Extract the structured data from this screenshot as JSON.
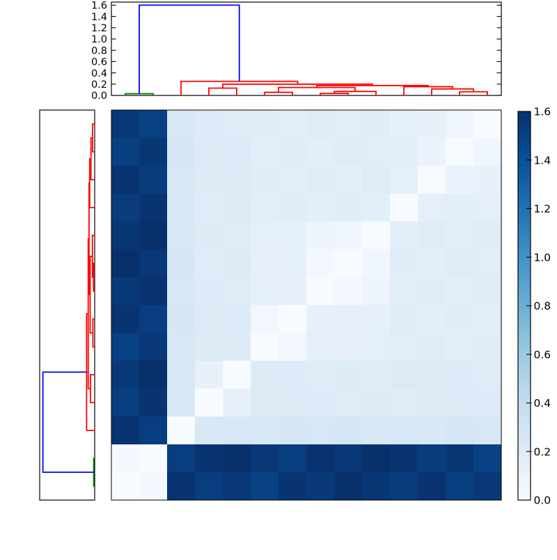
{
  "figure": {
    "background": "#ffffff",
    "description": "Hierarchically clustered distance-matrix heatmap with top and left dendrograms and a vertical colorbar"
  },
  "chart_data": {
    "type": "heatmap",
    "colormap": "Blues",
    "vmin": 0.0,
    "vmax": 1.6,
    "grid": false,
    "legend_position": "colorbar-right",
    "column_leaf_order": [
      1,
      2,
      3,
      4,
      5,
      6,
      7,
      8,
      9,
      10,
      11,
      12,
      13,
      14
    ],
    "row_leaf_order": [
      14,
      13,
      12,
      11,
      10,
      9,
      8,
      7,
      6,
      5,
      4,
      3,
      2,
      1
    ],
    "matrix": [
      [
        1.55,
        1.5,
        0.25,
        0.212,
        0.19,
        0.181,
        0.167,
        0.189,
        0.175,
        0.187,
        0.145,
        0.121,
        0.057,
        0.0
      ],
      [
        1.51,
        1.56,
        0.264,
        0.2,
        0.212,
        0.165,
        0.181,
        0.167,
        0.189,
        0.175,
        0.167,
        0.105,
        0.0,
        0.057
      ],
      [
        1.58,
        1.53,
        0.242,
        0.214,
        0.2,
        0.187,
        0.165,
        0.181,
        0.167,
        0.189,
        0.155,
        0.0,
        0.105,
        0.121
      ],
      [
        1.53,
        1.57,
        0.256,
        0.192,
        0.214,
        0.175,
        0.187,
        0.165,
        0.181,
        0.167,
        0.0,
        0.155,
        0.167,
        0.145
      ],
      [
        1.56,
        1.6,
        0.24,
        0.206,
        0.192,
        0.154,
        0.14,
        0.082,
        0.06,
        0.0,
        0.167,
        0.189,
        0.175,
        0.187
      ],
      [
        1.6,
        1.55,
        0.262,
        0.19,
        0.206,
        0.132,
        0.154,
        0.035,
        0.0,
        0.06,
        0.181,
        0.167,
        0.189,
        0.175
      ],
      [
        1.54,
        1.58,
        0.25,
        0.212,
        0.19,
        0.146,
        0.132,
        0.0,
        0.035,
        0.082,
        0.165,
        0.181,
        0.167,
        0.189
      ],
      [
        1.57,
        1.52,
        0.264,
        0.2,
        0.212,
        0.045,
        0.0,
        0.132,
        0.154,
        0.14,
        0.187,
        0.165,
        0.181,
        0.167
      ],
      [
        1.5,
        1.55,
        0.242,
        0.214,
        0.2,
        0.0,
        0.045,
        0.146,
        0.132,
        0.154,
        0.175,
        0.187,
        0.165,
        0.181
      ],
      [
        1.55,
        1.6,
        0.256,
        0.122,
        0.0,
        0.2,
        0.212,
        0.19,
        0.206,
        0.192,
        0.214,
        0.2,
        0.212,
        0.19
      ],
      [
        1.52,
        1.57,
        0.24,
        0.0,
        0.122,
        0.214,
        0.2,
        0.212,
        0.19,
        0.206,
        0.192,
        0.214,
        0.2,
        0.212
      ],
      [
        1.58,
        1.52,
        0.0,
        0.24,
        0.256,
        0.242,
        0.264,
        0.25,
        0.262,
        0.24,
        0.256,
        0.242,
        0.264,
        0.25
      ],
      [
        0.03,
        0.0,
        1.52,
        1.57,
        1.6,
        1.55,
        1.52,
        1.58,
        1.55,
        1.6,
        1.57,
        1.53,
        1.56,
        1.5
      ],
      [
        0.0,
        0.03,
        1.58,
        1.52,
        1.55,
        1.5,
        1.57,
        1.54,
        1.6,
        1.56,
        1.53,
        1.58,
        1.51,
        1.55
      ]
    ],
    "linkage": [
      {
        "id": "M1",
        "a": "L1",
        "b": "L2",
        "h": 0.03,
        "color": "#008000"
      },
      {
        "id": "M2",
        "a": "L13",
        "b": "L14",
        "h": 0.065,
        "color": "#ff0000"
      },
      {
        "id": "M3",
        "a": "L12",
        "b": "M2",
        "h": 0.115,
        "color": "#ff0000"
      },
      {
        "id": "M4",
        "a": "L11",
        "b": "M3",
        "h": 0.155,
        "color": "#ff0000"
      },
      {
        "id": "M5",
        "a": "L8",
        "b": "L9",
        "h": 0.035,
        "color": "#ff0000"
      },
      {
        "id": "M6",
        "a": "M5",
        "b": "L10",
        "h": 0.07,
        "color": "#ff0000"
      },
      {
        "id": "M7",
        "a": "L6",
        "b": "L7",
        "h": 0.055,
        "color": "#ff0000"
      },
      {
        "id": "M8",
        "a": "M7",
        "b": "M6",
        "h": 0.14,
        "color": "#ff0000"
      },
      {
        "id": "M9",
        "a": "M8",
        "b": "M4",
        "h": 0.175,
        "color": "#ff0000"
      },
      {
        "id": "M10",
        "a": "L4",
        "b": "L5",
        "h": 0.13,
        "color": "#ff0000"
      },
      {
        "id": "M11",
        "a": "M10",
        "b": "M9",
        "h": 0.2,
        "color": "#ff0000"
      },
      {
        "id": "M12",
        "a": "L3",
        "b": "M11",
        "h": 0.25,
        "color": "#ff0000"
      },
      {
        "id": "M13",
        "a": "M1",
        "b": "M12",
        "h": 1.6,
        "color": "#0000ff"
      }
    ],
    "top_axis": {
      "tick_labels": [
        "0.0",
        "0.2",
        "0.4",
        "0.6",
        "0.8",
        "1.0",
        "1.2",
        "1.4",
        "1.6"
      ],
      "range": [
        0,
        1.65
      ]
    },
    "colorbar": {
      "tick_labels": [
        "0.0",
        "0.2",
        "0.4",
        "0.6",
        "0.8",
        "1.0",
        "1.2",
        "1.4",
        "1.6"
      ],
      "range": [
        0,
        1.6
      ]
    },
    "colors": {
      "link_red": "#ff0000",
      "link_green": "#008000",
      "link_blue": "#0000ff",
      "axis_border": "#000000",
      "background": "#ffffff"
    },
    "colormap_stops": [
      [
        0.0,
        "#f7fbff"
      ],
      [
        0.125,
        "#deebf7"
      ],
      [
        0.25,
        "#c6dbef"
      ],
      [
        0.375,
        "#9ecae1"
      ],
      [
        0.5,
        "#6baed6"
      ],
      [
        0.625,
        "#4292c6"
      ],
      [
        0.75,
        "#2171b5"
      ],
      [
        0.875,
        "#08519c"
      ],
      [
        1.0,
        "#08306b"
      ]
    ]
  }
}
